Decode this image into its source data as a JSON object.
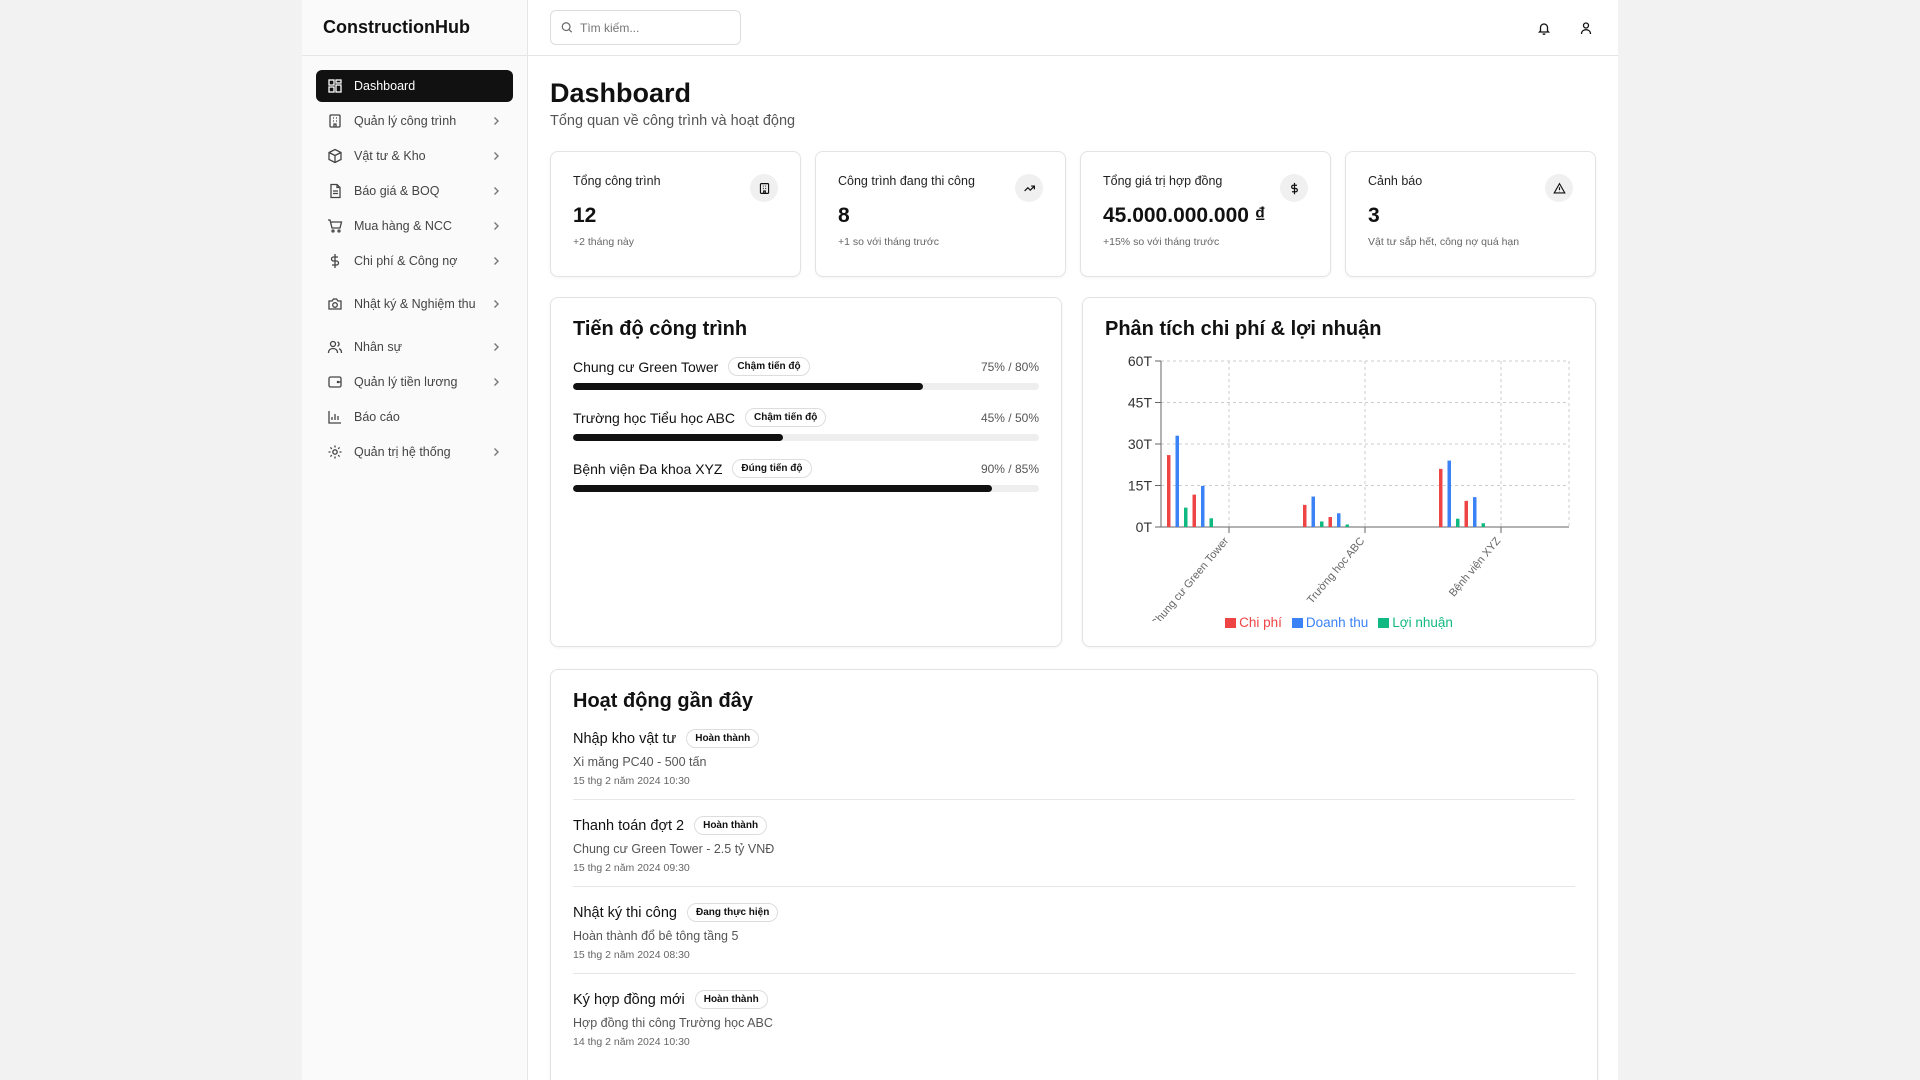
{
  "app": {
    "brand": "ConstructionHub"
  },
  "sidebar": {
    "items": [
      {
        "label": "Dashboard",
        "icon": "dashboard-icon",
        "active": true
      },
      {
        "label": "Quản lý công trình",
        "icon": "building-icon"
      },
      {
        "label": "Vật tư & Kho",
        "icon": "box-icon"
      },
      {
        "label": "Báo giá & BOQ",
        "icon": "document-icon"
      },
      {
        "label": "Mua hàng & NCC",
        "icon": "cart-icon"
      },
      {
        "label": "Chi phí & Công nợ",
        "icon": "dollar-icon"
      },
      {
        "label": "Nhật ký & Nghiệm thu",
        "icon": "camera-icon"
      },
      {
        "label": "Nhân sự",
        "icon": "users-icon"
      },
      {
        "label": "Quản lý tiền lương",
        "icon": "wallet-icon"
      },
      {
        "label": "Báo cáo",
        "icon": "bar-chart-icon"
      },
      {
        "label": "Quản trị hệ thống",
        "icon": "gear-icon"
      }
    ]
  },
  "header": {
    "search_placeholder": "Tìm kiếm..."
  },
  "page": {
    "title": "Dashboard",
    "subtitle": "Tổng quan về công trình và hoạt động"
  },
  "stats": [
    {
      "title": "Tổng công trình",
      "value": "12",
      "note": "+2 tháng này",
      "icon": "building-icon"
    },
    {
      "title": "Công trình đang thi công",
      "value": "8",
      "note": "+1 so với tháng trước",
      "icon": "trending-up-icon"
    },
    {
      "title": "Tổng giá trị hợp đồng",
      "value": "45.000.000.000 ₫",
      "note": "+15% so với tháng trước",
      "icon": "dollar-icon"
    },
    {
      "title": "Cảnh báo",
      "value": "3",
      "note": "Vật tư sắp hết, công nợ quá hạn",
      "icon": "warning-icon"
    }
  ],
  "progress": {
    "title": "Tiến độ công trình",
    "projects": [
      {
        "name": "Chung cư Green Tower",
        "status": "Chậm tiến độ",
        "pct_label": "75% / 80%",
        "fill": 0.75
      },
      {
        "name": "Trường học Tiểu học ABC",
        "status": "Chậm tiến độ",
        "pct_label": "45% / 50%",
        "fill": 0.45
      },
      {
        "name": "Bệnh viện Đa khoa XYZ",
        "status": "Đúng tiến độ",
        "pct_label": "90% / 85%",
        "fill": 0.9
      }
    ]
  },
  "chart": {
    "title": "Phân tích chi phí & lợi nhuận"
  },
  "chart_data": {
    "type": "bar",
    "categories": [
      "Chung cư Green Tower",
      "Trường học ABC",
      "Bệnh viện XYZ"
    ],
    "y_ticks": [
      "0T",
      "15T",
      "30T",
      "45T",
      "60T"
    ],
    "ylim": [
      0,
      60
    ],
    "grid": true,
    "legend_position": "bottom",
    "series": [
      {
        "name": "Chi phí",
        "color": "#ef4444",
        "values": [
          26,
          8,
          21
        ]
      },
      {
        "name": "Doanh thu",
        "color": "#3b82f6",
        "values": [
          33,
          11,
          24
        ]
      },
      {
        "name": "Lợi nhuận",
        "color": "#10b981",
        "values": [
          7,
          2,
          3
        ]
      }
    ]
  },
  "activity": {
    "title": "Hoạt động gần đây",
    "items": [
      {
        "title": "Nhập kho vật tư",
        "status": "Hoàn thành",
        "desc": "Xi măng PC40 - 500 tấn",
        "time": "15 thg 2 năm 2024 10:30"
      },
      {
        "title": "Thanh toán đợt 2",
        "status": "Hoàn thành",
        "desc": "Chung cư Green Tower - 2.5 tỷ VNĐ",
        "time": "15 thg 2 năm 2024 09:30"
      },
      {
        "title": "Nhật ký thi công",
        "status": "Đang thực hiện",
        "desc": "Hoàn thành đổ bê tông tầng 5",
        "time": "15 thg 2 năm 2024 08:30"
      },
      {
        "title": "Ký hợp đồng mới",
        "status": "Hoàn thành",
        "desc": "Hợp đồng thi công Trường học ABC",
        "time": "14 thg 2 năm 2024 10:30"
      }
    ]
  }
}
